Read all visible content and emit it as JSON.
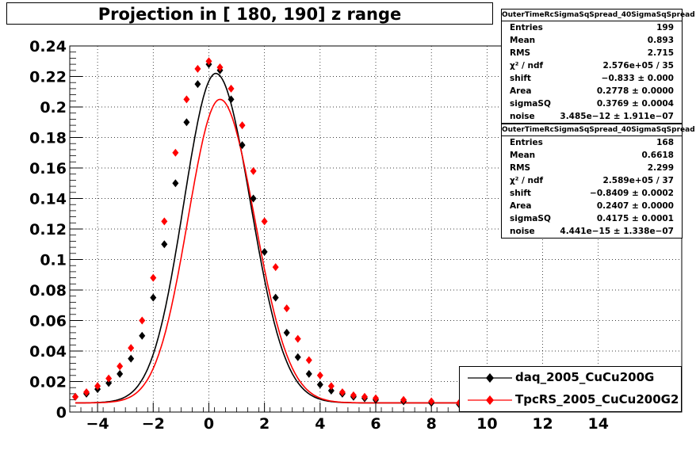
{
  "title": "Projection in [ 180, 190] z range",
  "chart_data": {
    "type": "scatter",
    "xlim": [
      -5,
      17
    ],
    "ylim": [
      0,
      0.24
    ],
    "x_ticks": [
      "−4",
      "−2",
      "0",
      "2",
      "4",
      "6",
      "8",
      "10",
      "12",
      "14"
    ],
    "x_tick_values": [
      -4,
      -2,
      0,
      2,
      4,
      6,
      8,
      10,
      12,
      14
    ],
    "y_ticks": [
      "0",
      "0.02",
      "0.04",
      "0.06",
      "0.08",
      "0.1",
      "0.12",
      "0.14",
      "0.16",
      "0.18",
      "0.2",
      "0.22",
      "0.24"
    ],
    "y_tick_values": [
      0,
      0.02,
      0.04,
      0.06,
      0.08,
      0.1,
      0.12,
      0.14,
      0.16,
      0.18,
      0.2,
      0.22,
      0.24
    ],
    "grid": true,
    "legend_position": "bottom-right",
    "series": [
      {
        "name": "daq_2005_CuCu200G",
        "color": "#000000",
        "marker": "diamond",
        "fit": {
          "peak_x": 0.25,
          "peak_y": 0.222
        },
        "x": [
          -4.8,
          -4.4,
          -4.0,
          -3.6,
          -3.2,
          -2.8,
          -2.4,
          -2.0,
          -1.6,
          -1.2,
          -0.8,
          -0.4,
          0.0,
          0.4,
          0.8,
          1.2,
          1.6,
          2.0,
          2.4,
          2.8,
          3.2,
          3.6,
          4.0,
          4.4,
          4.8,
          5.2,
          5.6,
          6.0,
          7.0,
          8.0,
          9.0
        ],
        "y": [
          0.01,
          0.012,
          0.015,
          0.019,
          0.025,
          0.035,
          0.05,
          0.075,
          0.11,
          0.15,
          0.19,
          0.215,
          0.228,
          0.224,
          0.205,
          0.175,
          0.14,
          0.105,
          0.075,
          0.052,
          0.036,
          0.025,
          0.018,
          0.014,
          0.012,
          0.01,
          0.009,
          0.008,
          0.007,
          0.006,
          0.005
        ]
      },
      {
        "name": "TpcRS_2005_CuCu200G2",
        "color": "#ff0000",
        "marker": "diamond",
        "fit": {
          "peak_x": 0.4,
          "peak_y": 0.205
        },
        "x": [
          -4.8,
          -4.4,
          -4.0,
          -3.6,
          -3.2,
          -2.8,
          -2.4,
          -2.0,
          -1.6,
          -1.2,
          -0.8,
          -0.4,
          0.0,
          0.4,
          0.8,
          1.2,
          1.6,
          2.0,
          2.4,
          2.8,
          3.2,
          3.6,
          4.0,
          4.4,
          4.8,
          5.2,
          5.6,
          6.0,
          7.0,
          8.0,
          9.0
        ],
        "y": [
          0.01,
          0.013,
          0.017,
          0.022,
          0.03,
          0.042,
          0.06,
          0.088,
          0.125,
          0.17,
          0.205,
          0.225,
          0.23,
          0.226,
          0.212,
          0.188,
          0.158,
          0.125,
          0.095,
          0.068,
          0.048,
          0.034,
          0.024,
          0.017,
          0.013,
          0.011,
          0.01,
          0.009,
          0.008,
          0.007,
          0.006
        ]
      }
    ]
  },
  "stats": [
    {
      "title": "OuterTimeRcSigmaSqSpread_40SigmaSqSpread",
      "rows": [
        {
          "label": "Entries",
          "value": "199"
        },
        {
          "label": "Mean",
          "value": "0.893"
        },
        {
          "label": "RMS",
          "value": "2.715"
        },
        {
          "label": "χ² / ndf",
          "value": "2.576e+05 / 35"
        },
        {
          "label": "shift",
          "value": "−0.833 ± 0.000"
        },
        {
          "label": "Area",
          "value": "0.2778 ± 0.0000"
        },
        {
          "label": "sigmaSQ",
          "value": "0.3769 ± 0.0004"
        },
        {
          "label": "noise",
          "value": "3.485e−12 ± 1.911e−07"
        }
      ]
    },
    {
      "title": "OuterTimeRcSigmaSqSpread_40SigmaSqSpread",
      "rows": [
        {
          "label": "Entries",
          "value": "168"
        },
        {
          "label": "Mean",
          "value": "0.6618"
        },
        {
          "label": "RMS",
          "value": "2.299"
        },
        {
          "label": "χ² / ndf",
          "value": "2.589e+05 / 37"
        },
        {
          "label": "shift",
          "value": "−0.8409 ± 0.0002"
        },
        {
          "label": "Area",
          "value": "0.2407 ± 0.0000"
        },
        {
          "label": "sigmaSQ",
          "value": "0.4175 ± 0.0001"
        },
        {
          "label": "noise",
          "value": "4.441e−15 ± 1.338e−07"
        }
      ]
    }
  ],
  "legend": [
    {
      "label": "daq_2005_CuCu200G",
      "color": "#000000"
    },
    {
      "label": "TpcRS_2005_CuCu200G2",
      "color": "#ff0000"
    }
  ]
}
